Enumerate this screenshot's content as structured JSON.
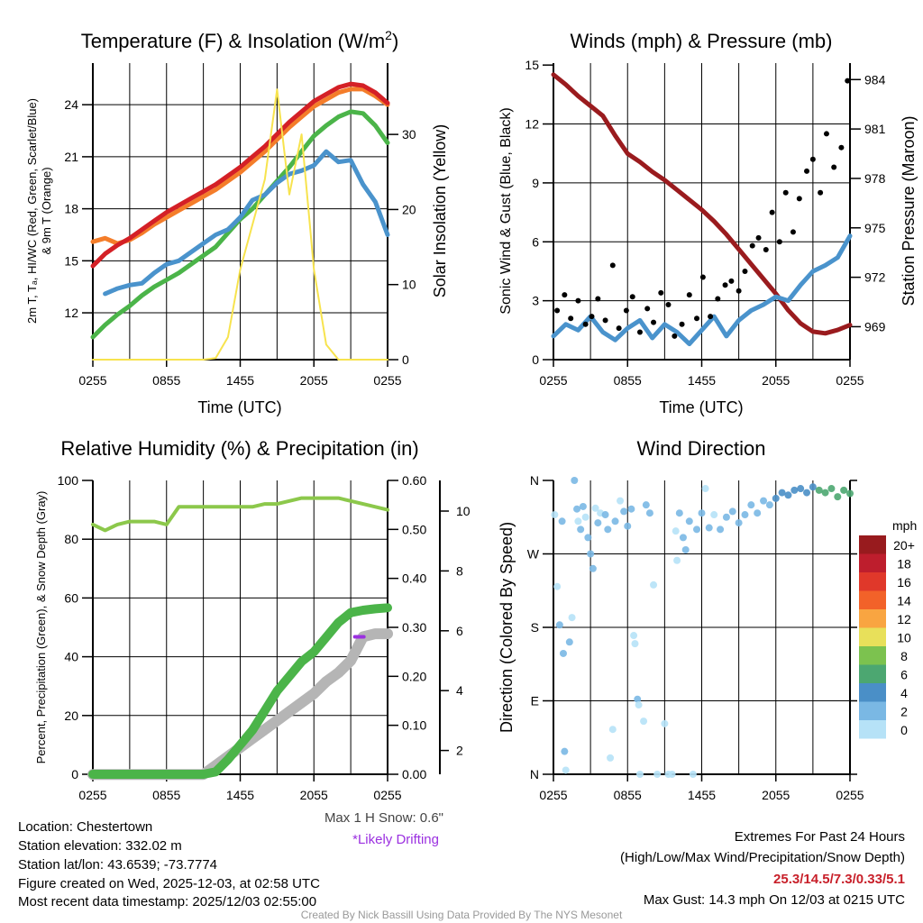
{
  "footer": {
    "location": "Location: Chestertown",
    "elevation": "Station elevation: 332.02 m",
    "latlon": "Station lat/lon: 43.6539; -73.7774",
    "created": "Figure created on Wed, 2025-12-03, at 02:58 UTC",
    "recent": "Most recent data timestamp: 2025/12/03 02:55:00",
    "extremes_title": "Extremes For Past 24 Hours",
    "extremes_sub": "(High/Low/Max Wind/Precipitation/Snow Depth)",
    "extremes_values": "25.3/14.5/7.3/0.33/5.1",
    "max_gust": "Max Gust: 14.3 mph On 12/03 at 0215 UTC",
    "credit": "Created By Nick Bassill Using Data Provided By The NYS Mesonet",
    "max_snow": "Max 1 H Snow: 0.6\"",
    "drifting": "*Likely Drifting"
  },
  "colors": {
    "red": "#d42026",
    "orange": "#f47d2a",
    "green": "#4bb449",
    "blue": "#4a93cc",
    "yellow": "#f7e34e",
    "maroon": "#9a1b1e",
    "black": "#000000",
    "lightgreen": "#8cc84b",
    "gray": "#b5b5b5",
    "purple": "#9b30e0"
  },
  "chart_data": [
    {
      "type": "line",
      "title": "Temperature (F) & Insolation (W/m²)",
      "title_main": "Temperature (F) & Insolation (W/m",
      "title_sup": "2",
      "title_end": ")",
      "xlabel": "Time (UTC)",
      "ylabel_line1": "2m T, Tₐ, HI/WC (Red, Green, Scarlet/Blue)",
      "ylabel_1": "2m T, T",
      "ylabel_sub": "d",
      "ylabel_2": ", HI/WC (Red, Green, Scarlet/Blue)",
      "ylabel_line2": "& 9m T (Orange)",
      "y2label": "Solar Insolation (Yellow)",
      "xticks": [
        "0255",
        "0855",
        "1455",
        "2055",
        "0255"
      ],
      "yticks": [
        12,
        15,
        18,
        21,
        24
      ],
      "y2ticks": [
        0,
        10,
        20,
        30
      ],
      "ylim": [
        9.3,
        26.4
      ],
      "y2lim": [
        0,
        39.5
      ],
      "x_hours": [
        0,
        1,
        2,
        3,
        4,
        5,
        6,
        7,
        8,
        9,
        10,
        11,
        12,
        13,
        14,
        15,
        16,
        17,
        18,
        19,
        20,
        21,
        22,
        23,
        24
      ],
      "series": [
        {
          "name": "9m T",
          "color": "orange",
          "axis": "left",
          "values": [
            16.1,
            16.3,
            16.0,
            16.2,
            16.6,
            17.1,
            17.5,
            17.9,
            18.3,
            18.7,
            19.1,
            19.6,
            20.1,
            20.7,
            21.3,
            22.0,
            22.7,
            23.3,
            23.9,
            24.3,
            24.7,
            24.9,
            24.9,
            24.5,
            24.0
          ]
        },
        {
          "name": "2m T",
          "color": "red",
          "axis": "left",
          "values": [
            14.7,
            15.4,
            15.9,
            16.3,
            16.8,
            17.3,
            17.8,
            18.2,
            18.6,
            19.0,
            19.4,
            19.9,
            20.4,
            21.0,
            21.6,
            22.3,
            23.0,
            23.6,
            24.2,
            24.6,
            25.0,
            25.2,
            25.1,
            24.7,
            24.1
          ]
        },
        {
          "name": "Td",
          "color": "green",
          "axis": "left",
          "values": [
            10.6,
            11.3,
            11.9,
            12.4,
            13.0,
            13.5,
            13.9,
            14.3,
            14.8,
            15.3,
            15.8,
            16.6,
            17.4,
            18.0,
            18.8,
            19.6,
            20.4,
            21.3,
            22.2,
            22.8,
            23.3,
            23.6,
            23.5,
            22.8,
            21.8
          ]
        },
        {
          "name": "HI/WC",
          "color": "blue",
          "axis": "left",
          "values": [
            null,
            13.1,
            13.4,
            13.6,
            13.7,
            14.3,
            14.8,
            15.0,
            15.5,
            16.0,
            16.5,
            16.8,
            17.5,
            18.5,
            18.8,
            19.5,
            20.0,
            20.2,
            20.5,
            21.3,
            20.7,
            20.8,
            19.4,
            18.4,
            16.5
          ]
        },
        {
          "name": "Insolation",
          "color": "yellow",
          "axis": "right",
          "values": [
            0,
            0,
            0,
            0,
            0,
            0,
            0,
            0,
            0,
            0,
            0.2,
            3,
            12,
            18,
            24,
            36,
            22,
            30,
            12,
            2,
            0,
            0,
            0,
            0,
            0
          ]
        }
      ]
    },
    {
      "type": "line",
      "title": "Winds (mph) & Pressure (mb)",
      "xlabel": "Time (UTC)",
      "ylabel": "Sonic Wind & Gust (Blue, Black)",
      "y2label": "Station Pressure (Maroon)",
      "xticks": [
        "0255",
        "0855",
        "1455",
        "2055",
        "0255"
      ],
      "yticks": [
        0,
        3,
        6,
        9,
        12,
        15
      ],
      "y2ticks": [
        969,
        972,
        975,
        978,
        981,
        984
      ],
      "ylim": [
        0,
        15.1
      ],
      "y2lim": [
        967,
        985
      ],
      "x_hours": [
        0,
        1,
        2,
        3,
        4,
        5,
        6,
        7,
        8,
        9,
        10,
        11,
        12,
        13,
        14,
        15,
        16,
        17,
        18,
        19,
        20,
        21,
        22,
        23,
        24
      ],
      "series": [
        {
          "name": "Pressure",
          "color": "maroon",
          "axis": "right",
          "values": [
            984.3,
            983.7,
            983.0,
            982.4,
            981.8,
            980.6,
            979.5,
            979.0,
            978.4,
            977.9,
            977.3,
            976.7,
            976.1,
            975.4,
            974.6,
            973.7,
            972.8,
            971.9,
            971.0,
            970.0,
            969.2,
            968.7,
            968.6,
            968.8,
            969.1
          ]
        },
        {
          "name": "Wind",
          "color": "blue",
          "axis": "left",
          "values": [
            1.2,
            1.8,
            1.5,
            2.2,
            1.4,
            1.0,
            1.6,
            2.0,
            1.1,
            1.8,
            1.4,
            0.8,
            1.5,
            2.2,
            1.2,
            2.0,
            2.5,
            2.8,
            3.2,
            3.0,
            3.8,
            4.5,
            4.8,
            5.2,
            6.3
          ]
        }
      ],
      "gusts": {
        "color": "black",
        "x_hours": [
          0.3,
          0.9,
          1.4,
          2.0,
          2.6,
          3.1,
          3.6,
          4.2,
          4.8,
          5.3,
          5.9,
          6.4,
          7.0,
          7.6,
          8.1,
          8.7,
          9.3,
          9.8,
          10.4,
          11.0,
          11.6,
          12.1,
          12.7,
          13.3,
          13.9,
          14.4,
          15.0,
          15.5,
          16.1,
          16.6,
          17.2,
          17.7,
          18.3,
          18.8,
          19.4,
          19.9,
          20.5,
          21.0,
          21.6,
          22.1,
          22.7,
          23.3,
          23.8
        ],
        "values": [
          2.5,
          3.3,
          2.1,
          3.0,
          1.8,
          2.2,
          3.1,
          2.0,
          4.8,
          1.6,
          2.5,
          3.2,
          1.4,
          2.6,
          1.9,
          3.4,
          2.8,
          1.2,
          1.8,
          3.3,
          2.1,
          4.2,
          2.2,
          3.1,
          3.8,
          4.0,
          3.5,
          4.5,
          5.8,
          6.2,
          5.6,
          7.5,
          6.0,
          8.5,
          6.5,
          8.2,
          9.6,
          10.2,
          8.5,
          11.5,
          9.8,
          10.8,
          14.2
        ]
      }
    },
    {
      "type": "line",
      "title": "Relative Humidity (%) & Precipitation (in)",
      "ylabel": "Percent, Precipitation (Green), & Snow Depth (Gray)",
      "xticks": [
        "0255",
        "0855",
        "1455",
        "2055",
        "0255"
      ],
      "yticks": [
        0,
        20,
        40,
        60,
        80,
        100
      ],
      "y2ticks": [
        "0.00",
        "0.10",
        "0.20",
        "0.30",
        "0.40",
        "0.50",
        "0.60"
      ],
      "y3ticks": [
        2,
        4,
        6,
        8,
        10
      ],
      "ylim": [
        0,
        100
      ],
      "y2lim": [
        0,
        0.6
      ],
      "x_hours": [
        0,
        1,
        2,
        3,
        4,
        5,
        6,
        7,
        8,
        9,
        10,
        11,
        12,
        13,
        14,
        15,
        16,
        17,
        18,
        19,
        20,
        21,
        22,
        23,
        24
      ],
      "series": [
        {
          "name": "RH",
          "color": "lightgreen",
          "axis": "left",
          "values": [
            85,
            83,
            85,
            86,
            86,
            86,
            85,
            91,
            91,
            91,
            91,
            91,
            91,
            91,
            92,
            92,
            93,
            94,
            94,
            94,
            94,
            93,
            92,
            91,
            90
          ]
        },
        {
          "name": "Snow Depth",
          "color": "gray",
          "axis": "snow",
          "values": [
            1.2,
            1.2,
            1.2,
            1.2,
            1.2,
            1.2,
            1.2,
            1.2,
            1.2,
            1.2,
            1.5,
            1.8,
            2.1,
            2.4,
            2.7,
            3.0,
            3.3,
            3.6,
            3.9,
            4.3,
            4.6,
            5.0,
            5.8,
            5.9,
            5.9
          ]
        },
        {
          "name": "Precipitation",
          "color": "green",
          "axis": "right",
          "values": [
            0,
            0,
            0,
            0,
            0,
            0,
            0,
            0,
            0,
            0,
            0.005,
            0.03,
            0.06,
            0.09,
            0.13,
            0.17,
            0.2,
            0.23,
            0.25,
            0.28,
            0.31,
            0.33,
            0.335,
            0.338,
            0.34
          ]
        }
      ],
      "drifting_marker": {
        "x_hours": 21.7,
        "snow": 5.8
      }
    },
    {
      "type": "scatter",
      "title": "Wind Direction",
      "ylabel": "Direction (Colored By Speed)",
      "xticks": [
        "0255",
        "0855",
        "1455",
        "2055",
        "0255"
      ],
      "yticks": [
        "N",
        "E",
        "S",
        "W",
        "N"
      ],
      "ylim": [
        0,
        360
      ],
      "legend_title": "mph",
      "legend": [
        {
          "label": "20+",
          "color": "#981b1e"
        },
        {
          "label": "18",
          "color": "#be1e2d"
        },
        {
          "label": "16",
          "color": "#e0382a"
        },
        {
          "label": "14",
          "color": "#f26229"
        },
        {
          "label": "12",
          "color": "#f9a541"
        },
        {
          "label": "10",
          "color": "#e8e05a"
        },
        {
          "label": "8",
          "color": "#7cc24f"
        },
        {
          "label": "6",
          "color": "#4ca771"
        },
        {
          "label": "4",
          "color": "#4a8fc7"
        },
        {
          "label": "2",
          "color": "#7ab8e4"
        },
        {
          "label": "0",
          "color": "#b6e2f7"
        }
      ],
      "points": [
        [
          0.1,
          318,
          1.5
        ],
        [
          0.3,
          230,
          1
        ],
        [
          0.5,
          183,
          3
        ],
        [
          0.7,
          310,
          3
        ],
        [
          0.8,
          148,
          2
        ],
        [
          0.9,
          28,
          3
        ],
        [
          1.0,
          5,
          1
        ],
        [
          1.3,
          162,
          2
        ],
        [
          1.5,
          192,
          1
        ],
        [
          1.7,
          365,
          3
        ],
        [
          1.9,
          325,
          3
        ],
        [
          2.0,
          310,
          1
        ],
        [
          2.2,
          300,
          3
        ],
        [
          2.4,
          328,
          3
        ],
        [
          2.6,
          315,
          1
        ],
        [
          2.8,
          290,
          2
        ],
        [
          3.0,
          270,
          3
        ],
        [
          3.2,
          252,
          3
        ],
        [
          3.4,
          326,
          1
        ],
        [
          3.6,
          308,
          3
        ],
        [
          3.8,
          320,
          1
        ],
        [
          4.2,
          318,
          2
        ],
        [
          4.4,
          300,
          3
        ],
        [
          4.6,
          20,
          1
        ],
        [
          4.8,
          55,
          1
        ],
        [
          5.0,
          310,
          3
        ],
        [
          5.4,
          335,
          1
        ],
        [
          5.7,
          322,
          2
        ],
        [
          6.0,
          304,
          3
        ],
        [
          6.3,
          325,
          3
        ],
        [
          6.5,
          170,
          1
        ],
        [
          6.6,
          160,
          1
        ],
        [
          6.8,
          92,
          3
        ],
        [
          6.9,
          85,
          1
        ],
        [
          7.0,
          0,
          1
        ],
        [
          7.3,
          65,
          1
        ],
        [
          7.5,
          330,
          3
        ],
        [
          7.8,
          320,
          3
        ],
        [
          8.1,
          232,
          1
        ],
        [
          8.4,
          0,
          1
        ],
        [
          9.0,
          62,
          1
        ],
        [
          9.3,
          0,
          1
        ],
        [
          9.6,
          0,
          1
        ],
        [
          9.9,
          298,
          1
        ],
        [
          10.0,
          262,
          1
        ],
        [
          10.2,
          320,
          2
        ],
        [
          10.5,
          290,
          3
        ],
        [
          10.7,
          275,
          2
        ],
        [
          11.0,
          310,
          3
        ],
        [
          11.3,
          0,
          1
        ],
        [
          11.6,
          300,
          2
        ],
        [
          12.0,
          320,
          2
        ],
        [
          12.3,
          350,
          1
        ],
        [
          12.6,
          302,
          2
        ],
        [
          13.0,
          318,
          1
        ],
        [
          13.5,
          300,
          3
        ],
        [
          14.0,
          315,
          2
        ],
        [
          14.5,
          322,
          3
        ],
        [
          15.0,
          308,
          2
        ],
        [
          15.5,
          318,
          3
        ],
        [
          16.0,
          330,
          3
        ],
        [
          16.5,
          320,
          2
        ],
        [
          17.0,
          335,
          3
        ],
        [
          17.5,
          330,
          3
        ],
        [
          18.0,
          338,
          4
        ],
        [
          18.5,
          345,
          4
        ],
        [
          19.0,
          342,
          4
        ],
        [
          19.5,
          348,
          5
        ],
        [
          20.0,
          350,
          4
        ],
        [
          20.5,
          345,
          5
        ],
        [
          21.0,
          352,
          5
        ],
        [
          21.5,
          348,
          6
        ],
        [
          22.0,
          345,
          6
        ],
        [
          22.5,
          350,
          6
        ],
        [
          23.0,
          340,
          6
        ],
        [
          23.5,
          348,
          6
        ],
        [
          24.0,
          344,
          7
        ]
      ]
    }
  ]
}
